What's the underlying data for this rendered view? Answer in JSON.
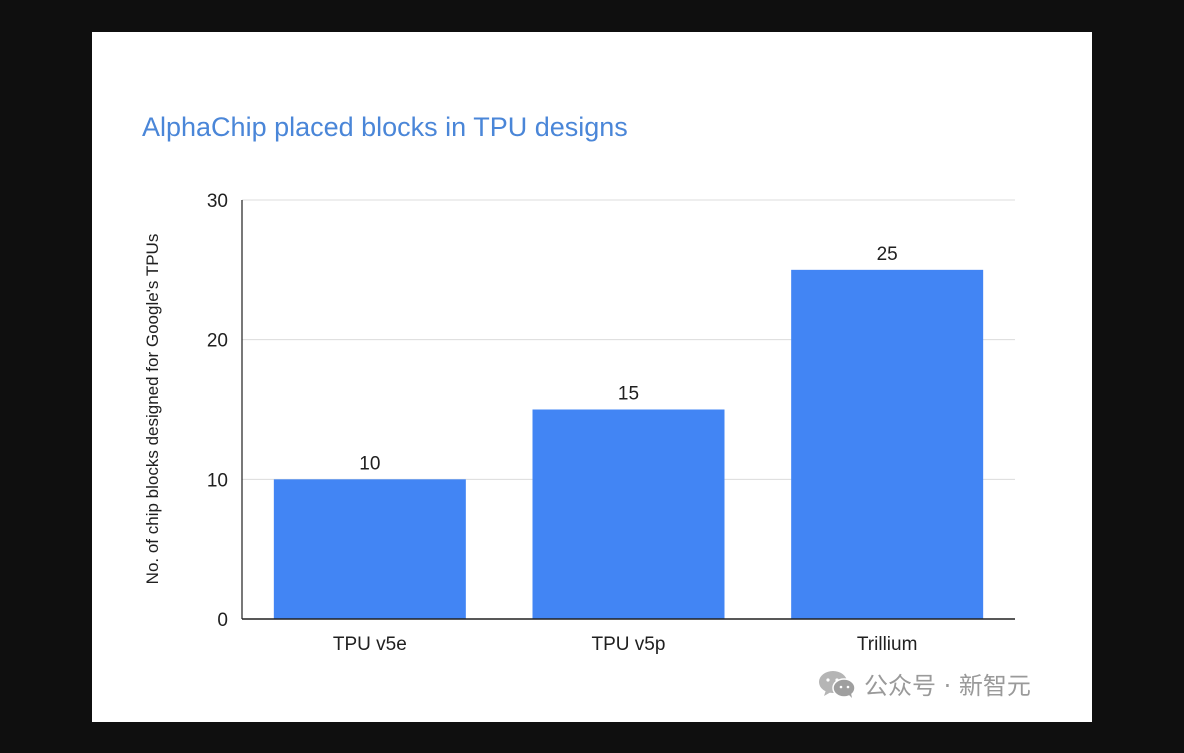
{
  "chart_data": {
    "type": "bar",
    "title": "AlphaChip placed blocks in TPU designs",
    "ylabel": "No. of chip blocks designed for Google's TPUs",
    "xlabel": "",
    "categories": [
      "TPU v5e",
      "TPU v5p",
      "Trillium"
    ],
    "values": [
      10,
      15,
      25
    ],
    "data_labels": [
      "10",
      "15",
      "25"
    ],
    "ylim": [
      0,
      30
    ],
    "yticks": [
      0,
      10,
      20,
      30
    ],
    "grid": true,
    "bar_color": "#4285f4",
    "title_color": "#4a86d8"
  },
  "watermark": {
    "text": "公众号 · 新智元",
    "icon": "wechat-icon"
  }
}
